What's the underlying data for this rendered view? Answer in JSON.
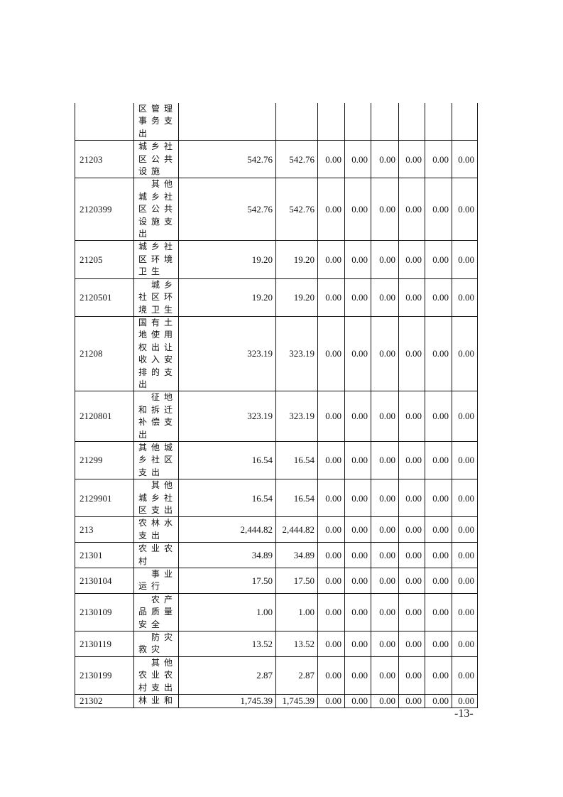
{
  "table": {
    "rows": [
      {
        "code": "",
        "name_lines": [
          "区管理",
          "事务支",
          "出"
        ],
        "values": [
          "",
          "",
          "",
          "",
          "",
          "",
          "",
          ""
        ]
      },
      {
        "code": "21203",
        "name_lines": [
          "城乡社",
          "区公共",
          "设施"
        ],
        "values": [
          "542.76",
          "542.76",
          "0.00",
          "0.00",
          "0.00",
          "0.00",
          "0.00",
          "0.00"
        ]
      },
      {
        "code": "2120399",
        "name_lines": [
          "　其他",
          "城乡社",
          "区公共",
          "设施支",
          "出"
        ],
        "values": [
          "542.76",
          "542.76",
          "0.00",
          "0.00",
          "0.00",
          "0.00",
          "0.00",
          "0.00"
        ]
      },
      {
        "code": "21205",
        "name_lines": [
          "城乡社",
          "区环境",
          "卫生"
        ],
        "values": [
          "19.20",
          "19.20",
          "0.00",
          "0.00",
          "0.00",
          "0.00",
          "0.00",
          "0.00"
        ]
      },
      {
        "code": "2120501",
        "name_lines": [
          "　城乡",
          "社区环",
          "境卫生"
        ],
        "values": [
          "19.20",
          "19.20",
          "0.00",
          "0.00",
          "0.00",
          "0.00",
          "0.00",
          "0.00"
        ]
      },
      {
        "code": "21208",
        "name_lines": [
          "国有土",
          "地使用",
          "权出让",
          "收入安",
          "排的支",
          "出"
        ],
        "values": [
          "323.19",
          "323.19",
          "0.00",
          "0.00",
          "0.00",
          "0.00",
          "0.00",
          "0.00"
        ]
      },
      {
        "code": "2120801",
        "name_lines": [
          "　征地",
          "和拆迁",
          "补偿支",
          "出"
        ],
        "values": [
          "323.19",
          "323.19",
          "0.00",
          "0.00",
          "0.00",
          "0.00",
          "0.00",
          "0.00"
        ]
      },
      {
        "code": "21299",
        "name_lines": [
          "其他城",
          "乡社区",
          "支出"
        ],
        "values": [
          "16.54",
          "16.54",
          "0.00",
          "0.00",
          "0.00",
          "0.00",
          "0.00",
          "0.00"
        ]
      },
      {
        "code": "2129901",
        "name_lines": [
          "　其他",
          "城乡社",
          "区支出"
        ],
        "values": [
          "16.54",
          "16.54",
          "0.00",
          "0.00",
          "0.00",
          "0.00",
          "0.00",
          "0.00"
        ]
      },
      {
        "code": "213",
        "name_lines": [
          "农林水",
          "支出"
        ],
        "values": [
          "2,444.82",
          "2,444.82",
          "0.00",
          "0.00",
          "0.00",
          "0.00",
          "0.00",
          "0.00"
        ]
      },
      {
        "code": "21301",
        "name_lines": [
          "农业农",
          "村"
        ],
        "values": [
          "34.89",
          "34.89",
          "0.00",
          "0.00",
          "0.00",
          "0.00",
          "0.00",
          "0.00"
        ]
      },
      {
        "code": "2130104",
        "name_lines": [
          "　事业",
          "运行"
        ],
        "values": [
          "17.50",
          "17.50",
          "0.00",
          "0.00",
          "0.00",
          "0.00",
          "0.00",
          "0.00"
        ]
      },
      {
        "code": "2130109",
        "name_lines": [
          "　农产",
          "品质量",
          "安全"
        ],
        "values": [
          "1.00",
          "1.00",
          "0.00",
          "0.00",
          "0.00",
          "0.00",
          "0.00",
          "0.00"
        ]
      },
      {
        "code": "2130119",
        "name_lines": [
          "　防灾",
          "救灾"
        ],
        "values": [
          "13.52",
          "13.52",
          "0.00",
          "0.00",
          "0.00",
          "0.00",
          "0.00",
          "0.00"
        ]
      },
      {
        "code": "2130199",
        "name_lines": [
          "　其他",
          "农业农",
          "村支出"
        ],
        "values": [
          "2.87",
          "2.87",
          "0.00",
          "0.00",
          "0.00",
          "0.00",
          "0.00",
          "0.00"
        ]
      },
      {
        "code": "21302",
        "name_lines": [
          "林业和"
        ],
        "values": [
          "1,745.39",
          "1,745.39",
          "0.00",
          "0.00",
          "0.00",
          "0.00",
          "0.00",
          "0.00"
        ]
      }
    ]
  },
  "footer": {
    "page_number": "-13-"
  }
}
